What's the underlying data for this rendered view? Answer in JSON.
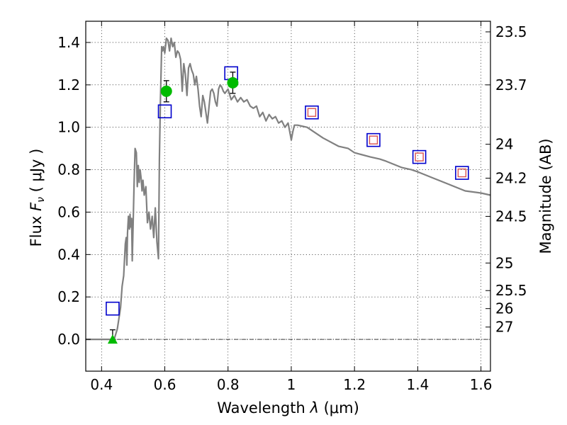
{
  "chart_data": {
    "type": "line",
    "xlabel": {
      "prefix": "Wavelength ",
      "symbol": "λ",
      "unit": " (μm)"
    },
    "ylabel": {
      "prefix": "Flux ",
      "symbol": "F",
      "sub": "ν",
      "unit": " ( μJy )"
    },
    "y2label": "Magnitude (AB)",
    "xlim": [
      0.35,
      1.63
    ],
    "ylim": [
      -0.15,
      1.5
    ],
    "xticks": [
      0.4,
      0.6,
      0.8,
      1.0,
      1.2,
      1.4,
      1.6
    ],
    "xtick_labels": [
      "0.4",
      "0.6",
      "0.8",
      "1",
      "1.2",
      "1.4",
      "1.6"
    ],
    "yticks": [
      0.0,
      0.2,
      0.4,
      0.6,
      0.8,
      1.0,
      1.2,
      1.4
    ],
    "ytick_labels": [
      "0.0",
      "0.2",
      "0.4",
      "0.6",
      "0.8",
      "1.0",
      "1.2",
      "1.4"
    ],
    "mag_ticks": [
      {
        "label": "23.5",
        "flux": 1.45
      },
      {
        "label": "23.7",
        "flux": 1.2
      },
      {
        "label": "24",
        "flux": 0.92
      },
      {
        "label": "24.2",
        "flux": 0.76
      },
      {
        "label": "24.5",
        "flux": 0.58
      },
      {
        "label": "25",
        "flux": 0.36
      },
      {
        "label": "25.5",
        "flux": 0.23
      },
      {
        "label": "26",
        "flux": 0.145
      },
      {
        "label": "27",
        "flux": 0.058
      }
    ],
    "grid": true,
    "series": [
      {
        "kind": "model_spectrum",
        "color": "#808080",
        "x": [
          0.35,
          0.43,
          0.44,
          0.45,
          0.46,
          0.465,
          0.47,
          0.475,
          0.478,
          0.48,
          0.482,
          0.485,
          0.488,
          0.49,
          0.492,
          0.495,
          0.497,
          0.5,
          0.503,
          0.506,
          0.51,
          0.513,
          0.516,
          0.519,
          0.522,
          0.525,
          0.528,
          0.531,
          0.535,
          0.54,
          0.545,
          0.55,
          0.555,
          0.56,
          0.565,
          0.57,
          0.575,
          0.58,
          0.583,
          0.586,
          0.59,
          0.593,
          0.596,
          0.6,
          0.605,
          0.61,
          0.615,
          0.62,
          0.625,
          0.63,
          0.635,
          0.64,
          0.645,
          0.65,
          0.655,
          0.66,
          0.665,
          0.67,
          0.675,
          0.68,
          0.685,
          0.69,
          0.695,
          0.7,
          0.705,
          0.71,
          0.715,
          0.72,
          0.725,
          0.73,
          0.735,
          0.74,
          0.745,
          0.75,
          0.755,
          0.76,
          0.765,
          0.77,
          0.775,
          0.78,
          0.785,
          0.79,
          0.8,
          0.81,
          0.82,
          0.83,
          0.84,
          0.85,
          0.86,
          0.87,
          0.88,
          0.89,
          0.9,
          0.91,
          0.92,
          0.93,
          0.94,
          0.95,
          0.96,
          0.97,
          0.98,
          0.99,
          1.0,
          1.005,
          1.01,
          1.02,
          1.05,
          1.07,
          1.1,
          1.15,
          1.18,
          1.2,
          1.25,
          1.28,
          1.3,
          1.35,
          1.38,
          1.4,
          1.45,
          1.5,
          1.55,
          1.6,
          1.63
        ],
        "y": [
          0.0,
          0.0,
          0.0,
          0.05,
          0.15,
          0.25,
          0.3,
          0.45,
          0.48,
          0.35,
          0.5,
          0.58,
          0.52,
          0.59,
          0.53,
          0.57,
          0.37,
          0.55,
          0.75,
          0.9,
          0.88,
          0.72,
          0.82,
          0.74,
          0.8,
          0.76,
          0.7,
          0.75,
          0.68,
          0.72,
          0.55,
          0.6,
          0.52,
          0.58,
          0.48,
          0.62,
          0.46,
          0.38,
          0.85,
          1.12,
          1.38,
          1.36,
          1.38,
          1.35,
          1.42,
          1.41,
          1.36,
          1.42,
          1.38,
          1.4,
          1.33,
          1.36,
          1.35,
          1.32,
          1.17,
          1.3,
          1.25,
          1.15,
          1.28,
          1.3,
          1.27,
          1.25,
          1.2,
          1.24,
          1.18,
          1.1,
          1.05,
          1.15,
          1.12,
          1.07,
          1.02,
          1.1,
          1.17,
          1.18,
          1.16,
          1.12,
          1.1,
          1.18,
          1.2,
          1.19,
          1.17,
          1.16,
          1.18,
          1.13,
          1.15,
          1.12,
          1.14,
          1.12,
          1.13,
          1.1,
          1.09,
          1.1,
          1.05,
          1.07,
          1.03,
          1.06,
          1.04,
          1.05,
          1.02,
          1.03,
          1.0,
          1.02,
          0.94,
          0.98,
          1.01,
          1.01,
          1.0,
          0.98,
          0.95,
          0.91,
          0.9,
          0.88,
          0.86,
          0.85,
          0.84,
          0.81,
          0.8,
          0.79,
          0.76,
          0.73,
          0.7,
          0.69,
          0.68
        ]
      },
      {
        "kind": "model_photometry",
        "marker": "square",
        "color": "#0000cc",
        "x": [
          0.435,
          0.6,
          0.81,
          1.065,
          1.26,
          1.405,
          1.54
        ],
        "y": [
          0.145,
          1.075,
          1.255,
          1.07,
          0.94,
          0.86,
          0.785
        ]
      },
      {
        "kind": "observed_photometry_red",
        "marker": "square",
        "color": "#d9534f",
        "x": [
          1.065,
          1.26,
          1.405,
          1.54
        ],
        "y": [
          1.07,
          0.94,
          0.86,
          0.785
        ]
      },
      {
        "kind": "detections",
        "marker": "circle",
        "color": "#00bb00",
        "x": [
          0.605,
          0.815
        ],
        "y": [
          1.17,
          1.21
        ],
        "yerr": [
          0.05,
          0.05
        ]
      },
      {
        "kind": "upper_limit",
        "marker": "triangle",
        "color": "#00bb00",
        "x": [
          0.435
        ],
        "y": [
          0.0
        ],
        "yerr": [
          0.045
        ]
      }
    ]
  }
}
